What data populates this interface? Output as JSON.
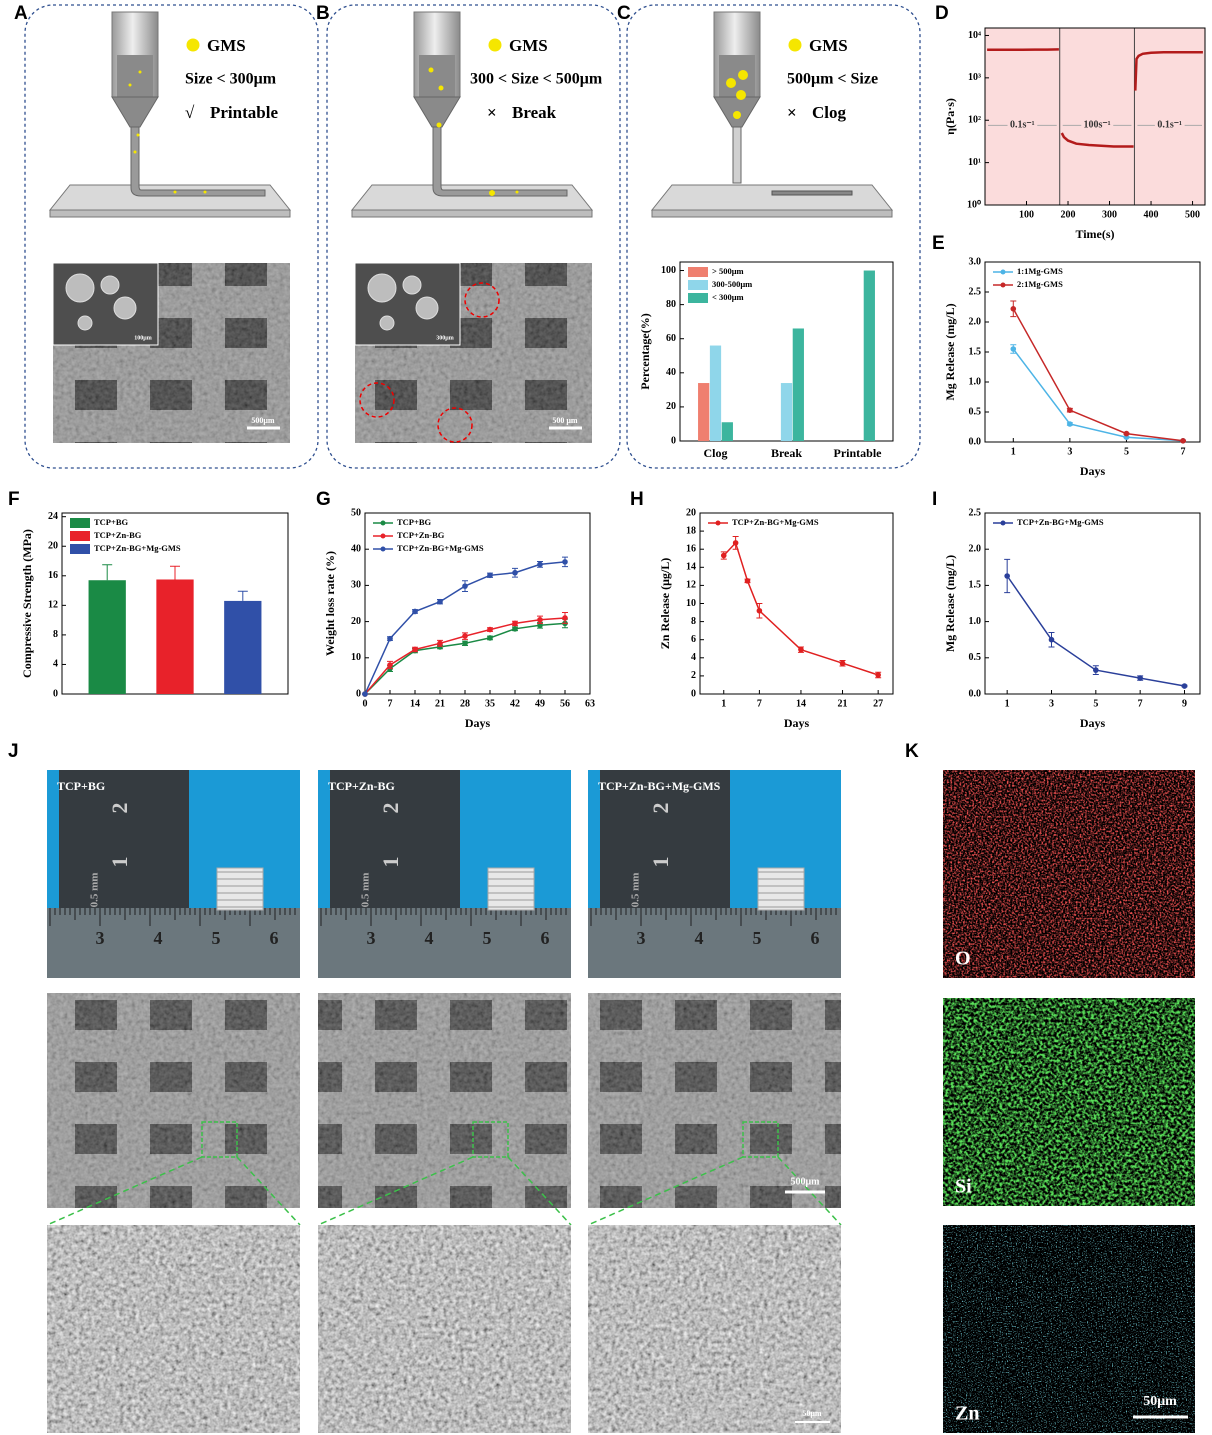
{
  "panel_letters": [
    "A",
    "B",
    "C",
    "D",
    "E",
    "F",
    "G",
    "H",
    "I",
    "J",
    "K"
  ],
  "printing_diagrams": [
    {
      "legend": "GMS",
      "size": "Size < 300μm",
      "mark": "√",
      "result": "Printable",
      "scale_bars": [
        "100μm",
        "500μm"
      ]
    },
    {
      "legend": "GMS",
      "size": "300 < Size < 500μm",
      "mark": "×",
      "result": "Break",
      "scale_bars": [
        "300μm",
        "500 μm"
      ]
    },
    {
      "legend": "GMS",
      "size": "500μm < Size",
      "mark": "×",
      "result": "Clog"
    }
  ],
  "scaffold_photos": {
    "labels": [
      "TCP+BG",
      "TCP+Zn-BG",
      "TCP+Zn-BG+Mg-GMS"
    ],
    "ruler_labels": [
      "2",
      "1",
      "0.5 mm",
      "3",
      "4",
      "5",
      "6"
    ]
  },
  "sem_scale_bars": [
    "500μm",
    "50μm"
  ],
  "eds_maps": {
    "elements": [
      "O",
      "Si",
      "Zn"
    ],
    "scale_bar": "50μm"
  },
  "chart_data": [
    {
      "type": "bar",
      "ylabel": "Percentage(%)",
      "categories": [
        "Clog",
        "Break",
        "Printable"
      ],
      "series": [
        {
          "name": "> 500μm",
          "color": "#ef7f6f",
          "values": [
            34,
            0,
            0
          ]
        },
        {
          "name": "300-500μm",
          "color": "#8fd6ea",
          "values": [
            56,
            34,
            0
          ]
        },
        {
          "name": "< 300μm",
          "color": "#3cb59e",
          "values": [
            11,
            66,
            100
          ]
        }
      ],
      "ylim": [
        0,
        105
      ],
      "yticks": [
        0,
        20,
        40,
        60,
        80,
        100
      ],
      "legend": "upper left"
    },
    {
      "type": "line",
      "xlabel": "Time(s)",
      "ylabel": "η(Pa·s)",
      "log_y": true,
      "markers": false,
      "background": "#fbdcdc",
      "x": [
        5,
        30,
        60,
        90,
        120,
        150,
        178,
        180,
        185,
        190,
        200,
        220,
        250,
        280,
        310,
        340,
        358,
        360,
        362,
        365,
        370,
        380,
        400,
        430,
        460,
        490,
        525
      ],
      "series": [
        {
          "color": "#b31b1b",
          "values": [
            4600,
            4600,
            4600,
            4600,
            4650,
            4650,
            4700,
            null,
            50,
            40,
            33,
            28,
            26,
            25,
            24,
            24,
            24,
            null,
            500,
            2800,
            3300,
            3700,
            3900,
            4000,
            4000,
            4000,
            4000
          ]
        }
      ],
      "shear_steps": [
        {
          "label": "0.1s⁻¹",
          "start": 0,
          "end": 180
        },
        {
          "label": "100s⁻¹",
          "start": 180,
          "end": 360
        },
        {
          "label": "0.1s⁻¹",
          "start": 360,
          "end": 530
        }
      ],
      "xlim": [
        0,
        530
      ],
      "xticks": [
        100,
        200,
        300,
        400,
        500
      ],
      "ylim": [
        1,
        15000
      ],
      "yticks": [
        {
          "value": 1,
          "label": "10⁰"
        },
        {
          "value": 10,
          "label": "10¹"
        },
        {
          "value": 100,
          "label": "10²"
        },
        {
          "value": 1000,
          "label": "10³"
        },
        {
          "value": 10000,
          "label": "10⁴"
        }
      ]
    },
    {
      "type": "line",
      "xlabel": "Days",
      "ylabel": "Mg Release (mg/L)",
      "x": [
        1,
        3,
        5,
        7
      ],
      "series": [
        {
          "name": "1:1Mg-GMS",
          "color": "#4db4e6",
          "values": [
            1.55,
            0.3,
            0.08,
            0.02
          ],
          "errors": [
            0.07,
            0.02,
            0.01,
            0.01
          ]
        },
        {
          "name": "2:1Mg-GMS",
          "color": "#c62828",
          "values": [
            2.22,
            0.53,
            0.14,
            0.02
          ],
          "errors": [
            0.13,
            0.03,
            0.01,
            0.01
          ]
        }
      ],
      "xlim": [
        0,
        7.6
      ],
      "xticks": [
        1,
        3,
        5,
        7
      ],
      "ylim": [
        0,
        3
      ],
      "yticks": [
        {
          "value": 0,
          "label": "0.0"
        },
        0.5,
        {
          "value": 1,
          "label": "1.0"
        },
        1.5,
        {
          "value": 2,
          "label": "2.0"
        },
        2.5,
        {
          "value": 3,
          "label": "3.0"
        }
      ],
      "legend": "upper left"
    },
    {
      "type": "bar",
      "ylabel": "Compressive Strength (MPa)",
      "categories": [
        null
      ],
      "series": [
        {
          "name": "TCP+BG",
          "color": "#1a8a45",
          "values": [
            15.4
          ],
          "errors": [
            2.1
          ]
        },
        {
          "name": "TCP+Zn-BG",
          "color": "#e8222a",
          "values": [
            15.5
          ],
          "errors": [
            1.8
          ]
        },
        {
          "name": "TCP+Zn-BG+Mg-GMS",
          "color": "#3050a8",
          "values": [
            12.6
          ],
          "errors": [
            1.3
          ]
        }
      ],
      "ylim": [
        0,
        24.5
      ],
      "yticks": [
        0,
        4,
        8,
        12,
        16,
        20,
        24
      ],
      "legend": "upper left"
    },
    {
      "type": "line",
      "xlabel": "Days",
      "ylabel": "Weight loss rate (%)",
      "x": [
        0,
        7,
        14,
        21,
        28,
        35,
        42,
        49,
        56
      ],
      "series": [
        {
          "name": "TCP+BG",
          "color": "#1a8a45",
          "values": [
            0,
            7,
            12,
            13,
            14,
            15.5,
            18,
            19,
            19.5
          ],
          "errors": [
            0,
            0.8,
            0.6,
            0.5,
            0.6,
            0.5,
            0.5,
            0.8,
            1.2
          ]
        },
        {
          "name": "TCP+Zn-BG",
          "color": "#e8222a",
          "values": [
            0,
            8,
            12.3,
            14,
            16,
            17.8,
            19.5,
            20.5,
            21
          ],
          "errors": [
            0,
            1,
            0.6,
            0.8,
            0.9,
            0.5,
            0.6,
            1,
            1.5
          ]
        },
        {
          "name": "TCP+Zn-BG+Mg-GMS",
          "color": "#3050a8",
          "values": [
            0,
            15.3,
            22.8,
            25.5,
            29.8,
            32.8,
            33.5,
            35.8,
            36.5
          ],
          "errors": [
            0,
            0.5,
            0.5,
            0.6,
            1.5,
            0.6,
            1.2,
            0.8,
            1.3
          ]
        }
      ],
      "xlim": [
        0,
        63
      ],
      "xticks": [
        0,
        7,
        14,
        21,
        28,
        35,
        42,
        49,
        56,
        63
      ],
      "ylim": [
        0,
        50
      ],
      "yticks": [
        0,
        10,
        20,
        30,
        40,
        50
      ],
      "legend": "upper left"
    },
    {
      "type": "line",
      "xlabel": "Days",
      "ylabel": "Zn Release (μg/L)",
      "x": [
        1,
        3,
        5,
        7,
        14,
        21,
        27
      ],
      "series": [
        {
          "name": "TCP+Zn-BG+Mg-GMS",
          "color": "#e02020",
          "values": [
            15.3,
            16.7,
            12.5,
            9.2,
            4.9,
            3.4,
            2.1
          ],
          "errors": [
            0.4,
            0.7,
            0.2,
            0.8,
            0.3,
            0.3,
            0.3
          ]
        }
      ],
      "xlim": [
        -3,
        29.5
      ],
      "xticks": [
        1,
        7,
        14,
        21,
        27
      ],
      "ylim": [
        0,
        20
      ],
      "yticks": [
        0,
        2,
        4,
        6,
        8,
        10,
        12,
        14,
        16,
        18,
        20
      ],
      "legend": "upper left"
    },
    {
      "type": "line",
      "xlabel": "Days",
      "ylabel": "Mg Release (mg/L)",
      "x": [
        1,
        3,
        5,
        7,
        9
      ],
      "series": [
        {
          "name": "TCP+Zn-BG+Mg-GMS",
          "color": "#2a3f9a",
          "values": [
            1.63,
            0.75,
            0.33,
            0.22,
            0.11
          ],
          "errors": [
            0.23,
            0.1,
            0.06,
            0.03,
            0.01
          ]
        }
      ],
      "xlim": [
        0,
        9.7
      ],
      "xticks": [
        1,
        3,
        5,
        7,
        9
      ],
      "ylim": [
        0,
        2.5
      ],
      "yticks": [
        {
          "value": 0,
          "label": "0.0"
        },
        0.5,
        {
          "value": 1,
          "label": "1.0"
        },
        1.5,
        {
          "value": 2,
          "label": "2.0"
        },
        2.5
      ],
      "legend": "upper left"
    }
  ]
}
